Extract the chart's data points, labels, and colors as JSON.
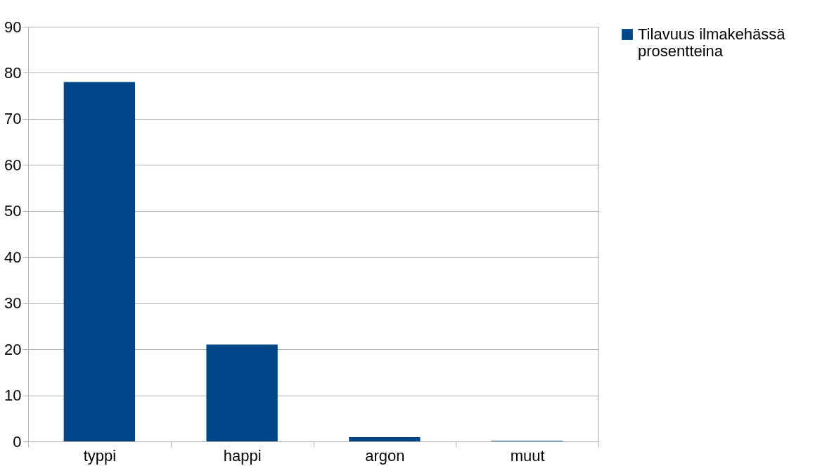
{
  "chart_data": {
    "type": "bar",
    "categories": [
      "typpi",
      "happi",
      "argon",
      "muut"
    ],
    "series": [
      {
        "name": "Tilavuus ilmakehässä prosentteina",
        "color": "#004586",
        "values": [
          78,
          21,
          0.9,
          0.1
        ]
      }
    ],
    "ylim": [
      0,
      90
    ],
    "yticks": [
      0,
      10,
      20,
      30,
      40,
      50,
      60,
      70,
      80,
      90
    ],
    "grid": "y",
    "legend": "right"
  }
}
